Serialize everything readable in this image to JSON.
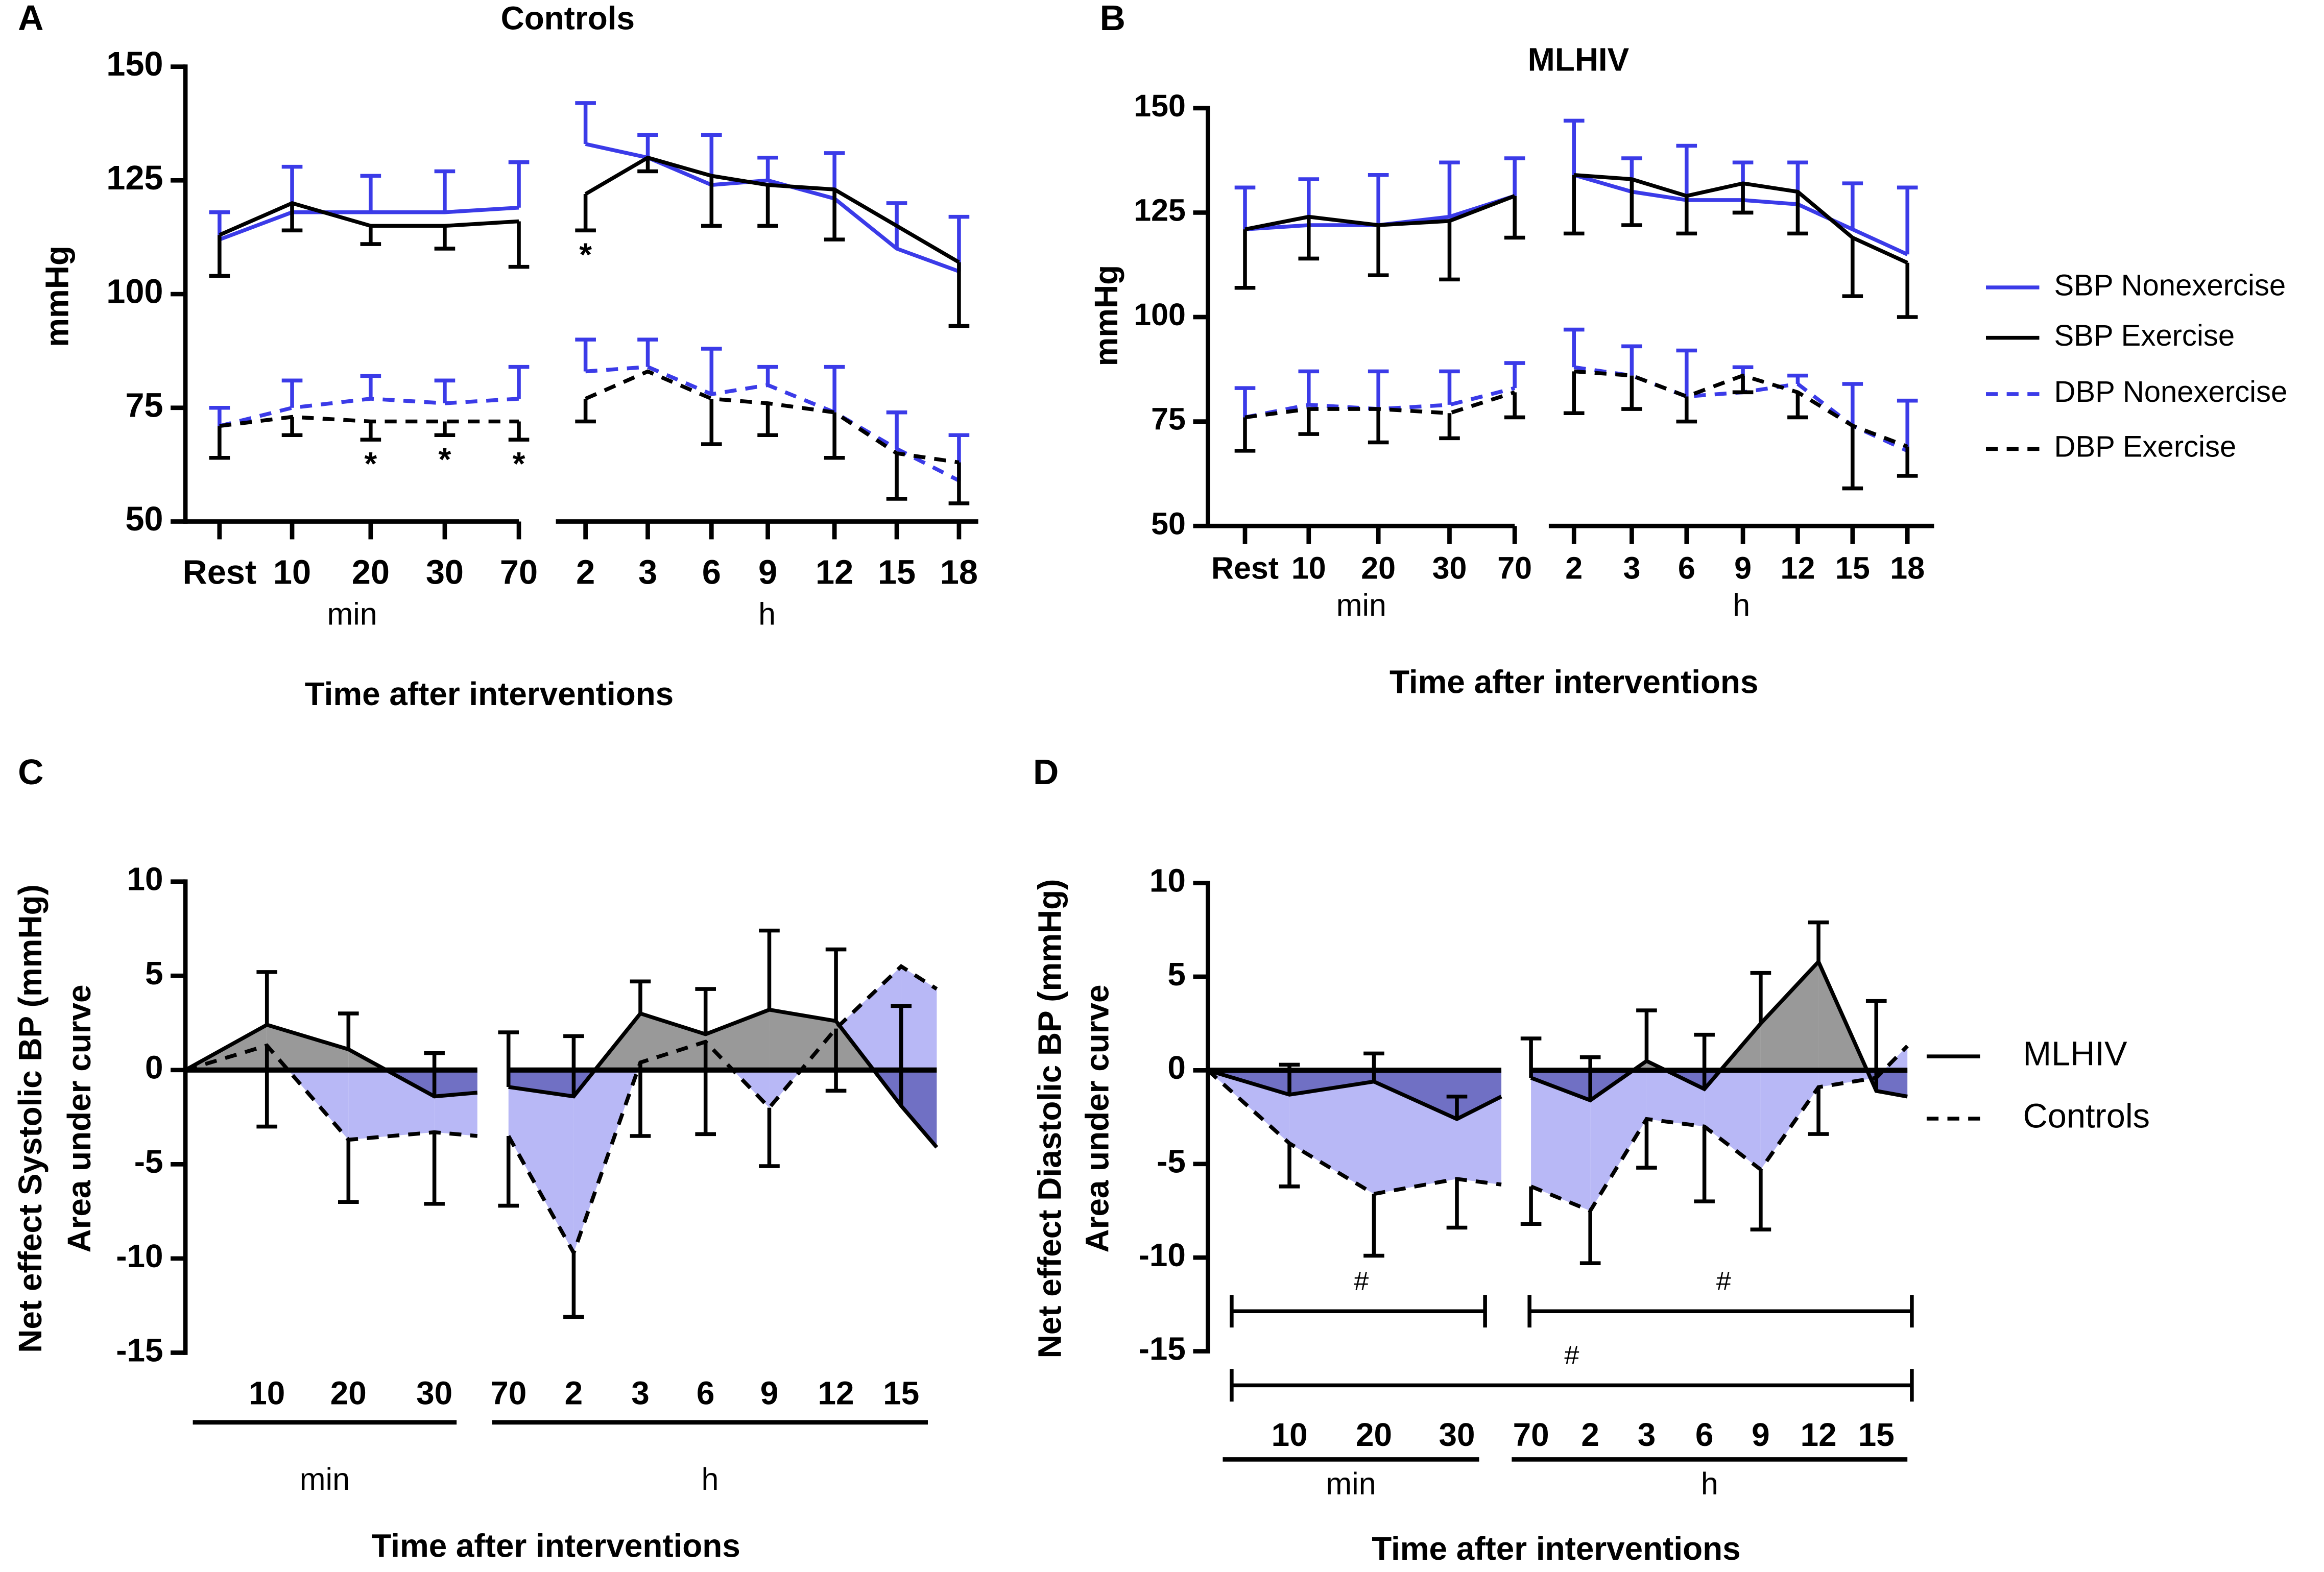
{
  "chart_data": [
    {
      "type": "line",
      "panel": "A",
      "title": "Controls",
      "ylabel": [
        "mmHg"
      ],
      "xlabel": "Time after interventions",
      "ylim": [
        50,
        150
      ],
      "yticks": [
        50,
        75,
        100,
        125,
        150
      ],
      "groups": [
        {
          "label": "min",
          "categories": [
            "Rest",
            "10",
            "20",
            "30",
            "70"
          ]
        },
        {
          "label": "h",
          "categories": [
            "2",
            "3",
            "6",
            "9",
            "12",
            "15",
            "18"
          ]
        }
      ],
      "series": [
        {
          "name": "SBP Nonexercise",
          "color": "#3b3be8",
          "dash": false,
          "error_direction": 1,
          "values": [
            [
              112,
              118,
              118,
              118,
              119
            ],
            [
              133,
              130,
              124,
              125,
              121,
              110,
              105
            ]
          ],
          "errors": [
            [
              6,
              10,
              8,
              9,
              10
            ],
            [
              9,
              5,
              11,
              5,
              10,
              10,
              12
            ]
          ]
        },
        {
          "name": "SBP Exercise",
          "color": "#000000",
          "dash": false,
          "error_direction": -1,
          "values": [
            [
              113,
              120,
              115,
              115,
              116
            ],
            [
              122,
              130,
              126,
              124,
              123,
              115,
              107
            ]
          ],
          "errors": [
            [
              9,
              6,
              4,
              5,
              10
            ],
            [
              8,
              3,
              11,
              9,
              11,
              null,
              14
            ]
          ],
          "markers": [
            [
              null,
              null,
              null,
              null,
              null
            ],
            [
              "*",
              null,
              null,
              null,
              null,
              null,
              null
            ]
          ]
        },
        {
          "name": "DBP Nonexercise",
          "color": "#3b3be8",
          "dash": true,
          "error_direction": 1,
          "values": [
            [
              71,
              75,
              77,
              76,
              77
            ],
            [
              83,
              84,
              78,
              80,
              74,
              66,
              59
            ]
          ],
          "errors": [
            [
              4,
              6,
              5,
              5,
              7
            ],
            [
              7,
              6,
              10,
              4,
              10,
              8,
              10
            ]
          ]
        },
        {
          "name": "DBP Exercise",
          "color": "#000000",
          "dash": true,
          "error_direction": -1,
          "values": [
            [
              71,
              73,
              72,
              72,
              72
            ],
            [
              77,
              83,
              77,
              76,
              74,
              65,
              63
            ]
          ],
          "errors": [
            [
              7,
              4,
              4,
              3,
              4
            ],
            [
              5,
              null,
              10,
              7,
              10,
              10,
              9
            ]
          ],
          "markers": [
            [
              null,
              null,
              "*",
              "*",
              "*"
            ],
            [
              null,
              null,
              null,
              null,
              null,
              null,
              null
            ]
          ]
        }
      ]
    },
    {
      "type": "line",
      "panel": "B",
      "title": "MLHIV",
      "ylabel": [
        "mmHg"
      ],
      "xlabel": "Time after interventions",
      "ylim": [
        50,
        150
      ],
      "yticks": [
        50,
        75,
        100,
        125,
        150
      ],
      "legend": "right",
      "groups": [
        {
          "label": "min",
          "categories": [
            "Rest",
            "10",
            "20",
            "30",
            "70"
          ]
        },
        {
          "label": "h",
          "categories": [
            "2",
            "3",
            "6",
            "9",
            "12",
            "15",
            "18"
          ]
        }
      ],
      "series": [
        {
          "name": "SBP Nonexercise",
          "color": "#3b3be8",
          "dash": false,
          "error_direction": 1,
          "values": [
            [
              121,
              122,
              122,
              124,
              129
            ],
            [
              134,
              130,
              128,
              128,
              127,
              121,
              115
            ]
          ],
          "errors": [
            [
              10,
              11,
              12,
              13,
              9
            ],
            [
              13,
              8,
              13,
              9,
              10,
              11,
              16
            ]
          ]
        },
        {
          "name": "SBP Exercise",
          "color": "#000000",
          "dash": false,
          "error_direction": -1,
          "values": [
            [
              121,
              124,
              122,
              123,
              129
            ],
            [
              134,
              133,
              129,
              132,
              130,
              119,
              113
            ]
          ],
          "errors": [
            [
              14,
              10,
              12,
              14,
              10
            ],
            [
              14,
              11,
              9,
              7,
              10,
              14,
              13
            ]
          ]
        },
        {
          "name": "DBP Nonexercise",
          "color": "#3b3be8",
          "dash": true,
          "error_direction": 1,
          "values": [
            [
              76,
              79,
              78,
              79,
              83
            ],
            [
              88,
              86,
              81,
              82,
              84,
              74,
              68
            ]
          ],
          "errors": [
            [
              7,
              8,
              9,
              8,
              6
            ],
            [
              9,
              7,
              11,
              6,
              2,
              10,
              12
            ]
          ]
        },
        {
          "name": "DBP Exercise",
          "color": "#000000",
          "dash": true,
          "error_direction": -1,
          "values": [
            [
              76,
              78,
              78,
              77,
              82
            ],
            [
              87,
              86,
              81,
              86,
              82,
              74,
              69
            ]
          ],
          "errors": [
            [
              8,
              6,
              8,
              6,
              6
            ],
            [
              10,
              8,
              6,
              4,
              6,
              15,
              7
            ]
          ]
        }
      ]
    },
    {
      "type": "area",
      "panel": "C",
      "ylabel": [
        "Net effect Systolic BP (mmHg)",
        "Area under curve"
      ],
      "xlabel": "Time after interventions",
      "ylim": [
        -15,
        10
      ],
      "yticks": [
        -15,
        -10,
        -5,
        0,
        5,
        10
      ],
      "groups": [
        {
          "label": "min",
          "categories": [
            null,
            "10",
            "20",
            "30",
            null
          ]
        },
        {
          "label": "h",
          "categories": [
            "70",
            "2",
            "3",
            "6",
            "9",
            "12",
            "15",
            null
          ]
        }
      ],
      "series": [
        {
          "name": "MLHIV",
          "color": "#000000",
          "dash": false,
          "error_direction": 1,
          "fill": "#999999",
          "fill_negative": "#7070c4",
          "values": [
            [
              0,
              2.4,
              1.1,
              -1.4,
              -1.2
            ],
            [
              -0.9,
              -1.4,
              3.0,
              1.9,
              3.2,
              2.6,
              -1.9,
              -4.1
            ]
          ],
          "errors": [
            [
              null,
              2.8,
              1.9,
              2.3,
              null
            ],
            [
              2.9,
              3.2,
              1.7,
              2.4,
              4.2,
              3.8,
              5.3,
              null
            ]
          ]
        },
        {
          "name": "Controls",
          "color": "#000000",
          "dash": true,
          "error_direction": -1,
          "fill": "#b8b8f6",
          "values": [
            [
              0,
              1.3,
              -3.7,
              -3.3,
              -3.5
            ],
            [
              -3.5,
              -9.7,
              0.4,
              1.5,
              -2.0,
              2.2,
              5.5,
              4.3
            ]
          ],
          "errors": [
            [
              null,
              4.3,
              3.3,
              3.8,
              null
            ],
            [
              3.7,
              3.4,
              3.9,
              4.9,
              3.1,
              3.3,
              null,
              null
            ]
          ]
        }
      ]
    },
    {
      "type": "area",
      "panel": "D",
      "ylabel": [
        "Net effect Diastolic BP (mmHg)",
        "Area under curve"
      ],
      "xlabel": "Time after interventions",
      "ylim": [
        -15,
        10
      ],
      "yticks": [
        -15,
        -10,
        -5,
        0,
        5,
        10
      ],
      "legend": "right",
      "groups": [
        {
          "label": "min",
          "categories": [
            null,
            "10",
            "20",
            "30",
            null
          ]
        },
        {
          "label": "h",
          "categories": [
            "70",
            "2",
            "3",
            "6",
            "9",
            "12",
            "15",
            null
          ]
        }
      ],
      "series": [
        {
          "name": "MLHIV",
          "color": "#000000",
          "dash": false,
          "error_direction": 1,
          "fill": "#999999",
          "fill_negative": "#7070c4",
          "values": [
            [
              0,
              -1.3,
              -0.6,
              -2.6,
              -1.4
            ],
            [
              -0.4,
              -1.6,
              0.5,
              -1.0,
              2.5,
              5.8,
              -1.1,
              -1.4
            ]
          ],
          "errors": [
            [
              null,
              1.6,
              1.5,
              1.2,
              null
            ],
            [
              2.1,
              2.3,
              2.7,
              2.9,
              2.7,
              2.1,
              4.8,
              null
            ]
          ]
        },
        {
          "name": "Controls",
          "color": "#000000",
          "dash": true,
          "error_direction": -1,
          "fill": "#b8b8f6",
          "values": [
            [
              0,
              -3.9,
              -6.6,
              -5.8,
              -6.1
            ],
            [
              -6.2,
              -7.5,
              -2.6,
              -3.0,
              -5.3,
              -0.9,
              -0.4,
              1.3
            ]
          ],
          "errors": [
            [
              null,
              2.3,
              3.3,
              2.6,
              null
            ],
            [
              2.0,
              2.8,
              2.6,
              4.0,
              3.2,
              2.5,
              null,
              null
            ]
          ]
        }
      ],
      "brackets": [
        {
          "label": "#",
          "groups": [
            0
          ]
        },
        {
          "label": "#",
          "groups": [
            1
          ]
        },
        {
          "label": "#",
          "groups": [
            0,
            1
          ]
        }
      ]
    }
  ]
}
